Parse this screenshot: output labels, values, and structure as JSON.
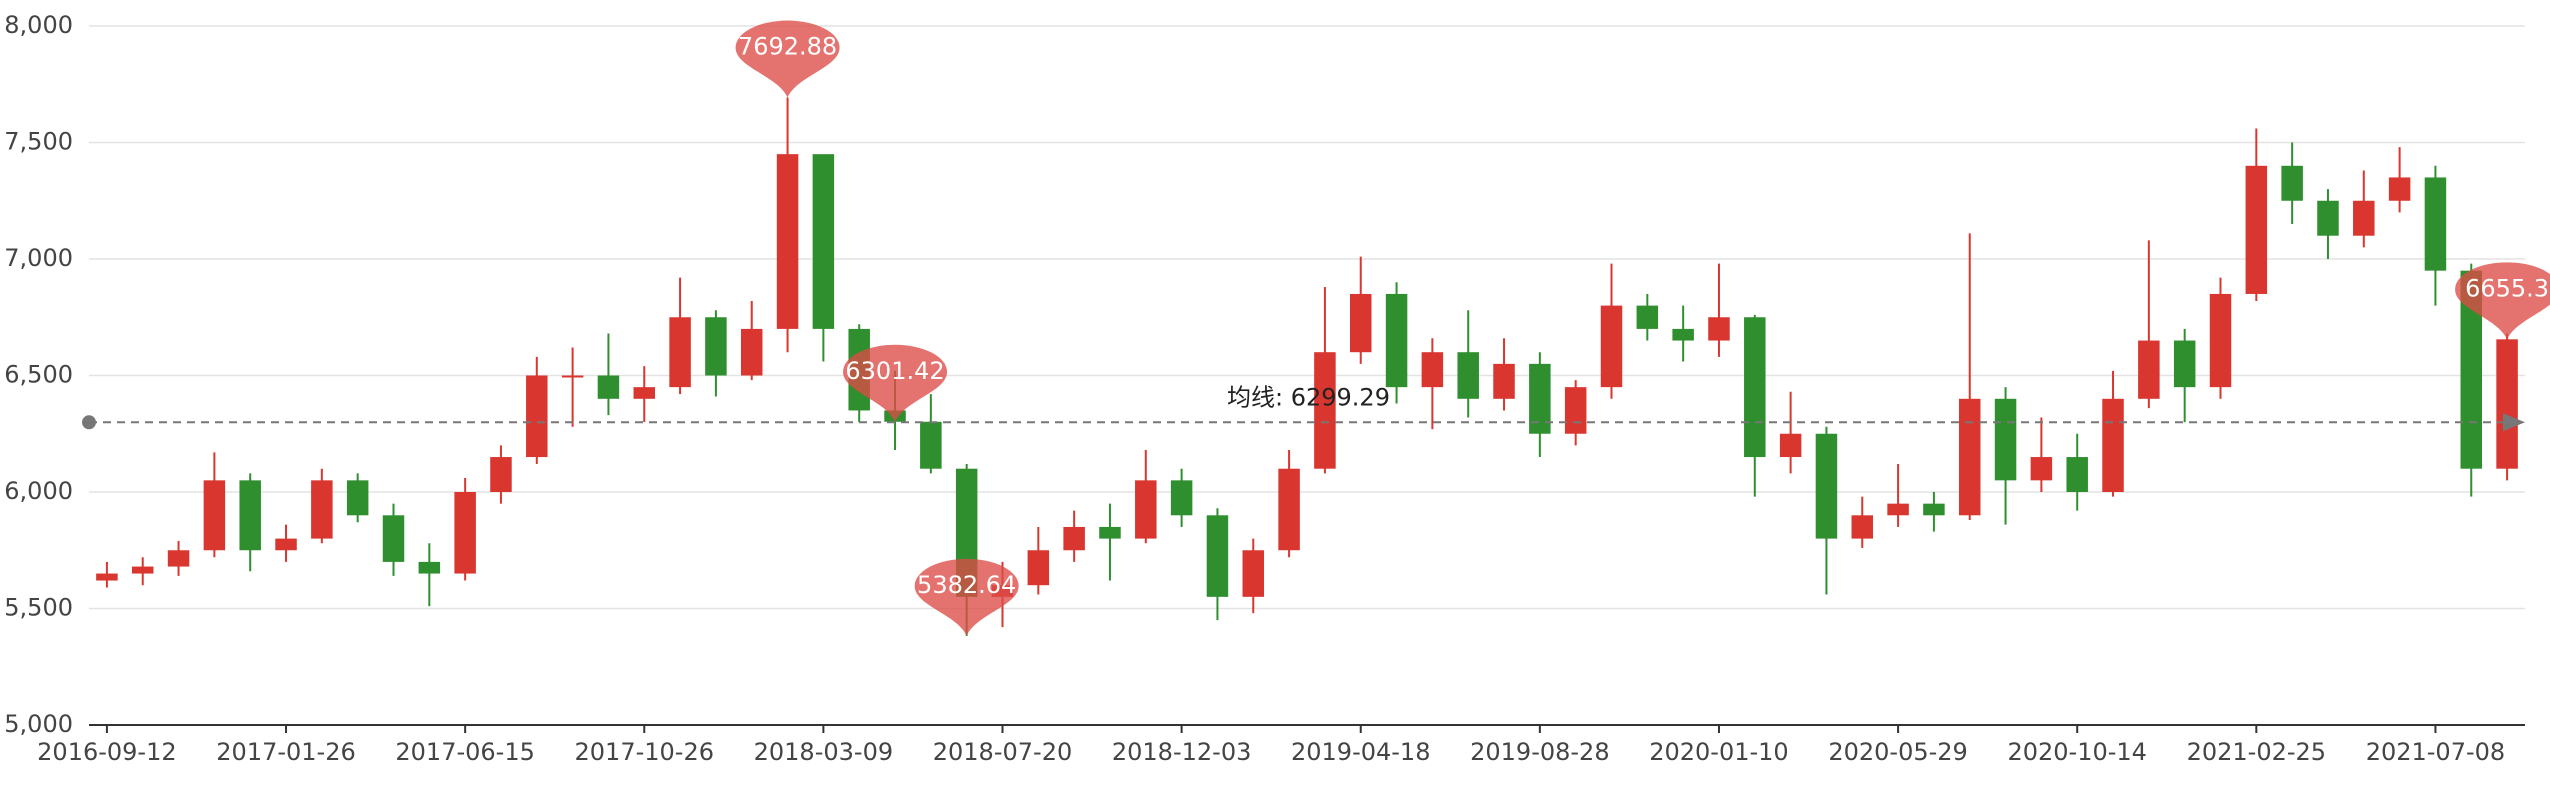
{
  "chart_data": {
    "type": "candlestick",
    "up_color": "#d9362f",
    "down_color": "#2f8f2f",
    "ylim": [
      5000,
      8000
    ],
    "yticks": [
      {
        "value": 5000,
        "label": "5,000"
      },
      {
        "value": 5500,
        "label": "5,500"
      },
      {
        "value": 6000,
        "label": "6,000"
      },
      {
        "value": 6500,
        "label": "6,500"
      },
      {
        "value": 7000,
        "label": "7,000"
      },
      {
        "value": 7500,
        "label": "7,500"
      },
      {
        "value": 8000,
        "label": "8,000"
      }
    ],
    "grid": true,
    "categories": [
      "2016-09-12",
      null,
      null,
      null,
      null,
      "2017-01-26",
      null,
      null,
      null,
      null,
      "2017-06-15",
      null,
      null,
      null,
      null,
      "2017-10-26",
      null,
      null,
      null,
      null,
      "2018-03-09",
      null,
      null,
      null,
      null,
      "2018-07-20",
      null,
      null,
      null,
      null,
      "2018-12-03",
      null,
      null,
      null,
      null,
      "2019-04-18",
      null,
      null,
      null,
      null,
      "2019-08-28",
      null,
      null,
      null,
      null,
      "2020-01-10",
      null,
      null,
      null,
      null,
      "2020-05-29",
      null,
      null,
      null,
      null,
      "2020-10-14",
      null,
      null,
      null,
      null,
      "2021-02-25",
      null,
      null,
      null,
      null,
      "2021-07-08",
      null,
      null
    ],
    "series": [
      {
        "values": [
          [
            5620,
            5650,
            5590,
            5700
          ],
          [
            5650,
            5680,
            5600,
            5720
          ],
          [
            5680,
            5750,
            5640,
            5790
          ],
          [
            5750,
            6050,
            5720,
            6170
          ],
          [
            6050,
            5750,
            5660,
            6080
          ],
          [
            5750,
            5800,
            5700,
            5860
          ],
          [
            5800,
            6050,
            5780,
            6100
          ],
          [
            6050,
            5900,
            5870,
            6080
          ],
          [
            5900,
            5700,
            5640,
            5950
          ],
          [
            5700,
            5650,
            5510,
            5780
          ],
          [
            5650,
            6000,
            5620,
            6060
          ],
          [
            6000,
            6150,
            5950,
            6200
          ],
          [
            6150,
            6500,
            6120,
            6580
          ],
          [
            6500,
            6500,
            6280,
            6620
          ],
          [
            6500,
            6400,
            6330,
            6680
          ],
          [
            6400,
            6450,
            6300,
            6540
          ],
          [
            6450,
            6750,
            6420,
            6920
          ],
          [
            6750,
            6500,
            6410,
            6780
          ],
          [
            6500,
            6700,
            6480,
            6820
          ],
          [
            6700,
            7450,
            6600,
            7692.88
          ],
          [
            7450,
            6700,
            6560,
            7100
          ],
          [
            6700,
            6350,
            6300,
            6720
          ],
          [
            6350,
            6301.42,
            6180,
            6520
          ],
          [
            6301.42,
            6100,
            6080,
            6420
          ],
          [
            6100,
            5550,
            5382.64,
            6120
          ],
          [
            5550,
            5600,
            5420,
            5700
          ],
          [
            5600,
            5750,
            5560,
            5850
          ],
          [
            5750,
            5850,
            5700,
            5920
          ],
          [
            5850,
            5800,
            5620,
            5950
          ],
          [
            5800,
            6050,
            5780,
            6180
          ],
          [
            6050,
            5900,
            5850,
            6100
          ],
          [
            5900,
            5550,
            5450,
            5930
          ],
          [
            5550,
            5750,
            5480,
            5800
          ],
          [
            5750,
            6100,
            5720,
            6180
          ],
          [
            6100,
            6600,
            6080,
            6880
          ],
          [
            6600,
            6850,
            6550,
            7010
          ],
          [
            6850,
            6450,
            6380,
            6900
          ],
          [
            6450,
            6600,
            6270,
            6660
          ],
          [
            6600,
            6400,
            6320,
            6780
          ],
          [
            6400,
            6550,
            6350,
            6660
          ],
          [
            6550,
            6250,
            6150,
            6600
          ],
          [
            6250,
            6450,
            6200,
            6480
          ],
          [
            6450,
            6800,
            6400,
            6980
          ],
          [
            6800,
            6700,
            6650,
            6850
          ],
          [
            6700,
            6650,
            6560,
            6800
          ],
          [
            6650,
            6750,
            6580,
            6980
          ],
          [
            6750,
            6150,
            5980,
            6760
          ],
          [
            6150,
            6250,
            6080,
            6430
          ],
          [
            6250,
            5800,
            5560,
            6280
          ],
          [
            5800,
            5900,
            5760,
            5980
          ],
          [
            5900,
            5950,
            5850,
            6120
          ],
          [
            5950,
            5900,
            5830,
            6000
          ],
          [
            5900,
            6400,
            5880,
            7110
          ],
          [
            6400,
            6050,
            5860,
            6450
          ],
          [
            6050,
            6150,
            6000,
            6320
          ],
          [
            6150,
            6000,
            5920,
            6250
          ],
          [
            6000,
            6400,
            5980,
            6520
          ],
          [
            6400,
            6650,
            6360,
            7080
          ],
          [
            6650,
            6450,
            6300,
            6700
          ],
          [
            6450,
            6850,
            6400,
            6920
          ],
          [
            6850,
            7400,
            6820,
            7560
          ],
          [
            7400,
            7250,
            7150,
            7500
          ],
          [
            7250,
            7100,
            7000,
            7300
          ],
          [
            7100,
            7250,
            7050,
            7380
          ],
          [
            7250,
            7350,
            7200,
            7480
          ],
          [
            7350,
            6950,
            6800,
            7400
          ],
          [
            6950,
            6100,
            5980,
            6980
          ],
          [
            6100,
            6655.3,
            6050,
            6680
          ]
        ]
      }
    ],
    "mark_points": [
      7692.88,
      6301.42,
      5382.64,
      6655.3
    ],
    "average_line": {
      "value": 6299.29,
      "label": "均线: 6299.29"
    }
  }
}
